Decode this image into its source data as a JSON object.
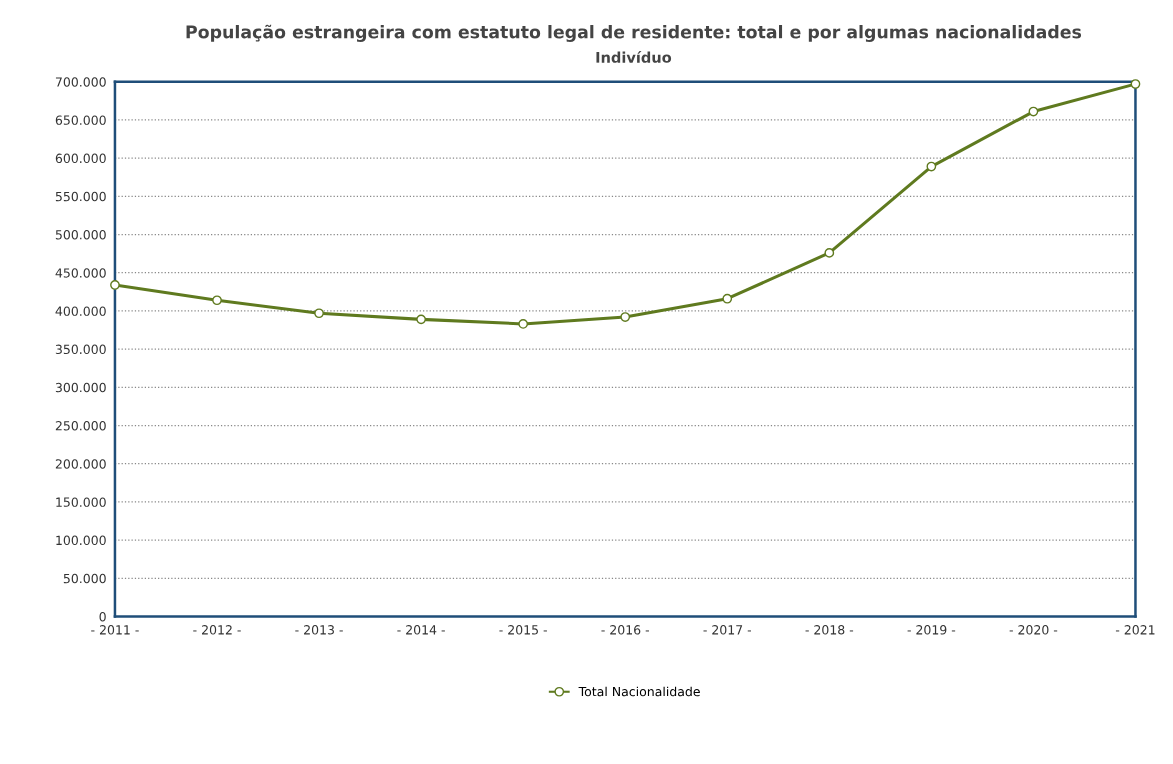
{
  "chart_data": {
    "type": "line",
    "title": "População estrangeira com estatuto legal de residente: total e por algumas nacionalidades",
    "subtitle": "Indivíduo",
    "categories": [
      "- 2011 -",
      "- 2012 -",
      "- 2013 -",
      "- 2014 -",
      "- 2015 -",
      "- 2016 -",
      "- 2017 -",
      "- 2018 -",
      "- 2019 -",
      "- 2020 -",
      "- 2021"
    ],
    "series": [
      {
        "name": "Total Nacionalidade",
        "color": "#5f7a1f",
        "values": [
          434000,
          414000,
          397000,
          389000,
          383000,
          392000,
          416000,
          476000,
          589000,
          661000,
          697000
        ]
      }
    ],
    "ylim": [
      0,
      700000
    ],
    "yticks": [
      {
        "value": 0,
        "label": "0"
      },
      {
        "value": 50000,
        "label": "50.000"
      },
      {
        "value": 100000,
        "label": "100.000"
      },
      {
        "value": 150000,
        "label": "150.000"
      },
      {
        "value": 200000,
        "label": "200.000"
      },
      {
        "value": 250000,
        "label": "250.000"
      },
      {
        "value": 300000,
        "label": "300.000"
      },
      {
        "value": 350000,
        "label": "350.000"
      },
      {
        "value": 400000,
        "label": "400.000"
      },
      {
        "value": 450000,
        "label": "450.000"
      },
      {
        "value": 500000,
        "label": "500.000"
      },
      {
        "value": 550000,
        "label": "550.000"
      },
      {
        "value": 600000,
        "label": "600.000"
      },
      {
        "value": 650000,
        "label": "650.000"
      },
      {
        "value": 700000,
        "label": "700.000"
      }
    ],
    "grid": "y",
    "legend": "bottom",
    "marker": "circle",
    "line_style": "solid"
  }
}
